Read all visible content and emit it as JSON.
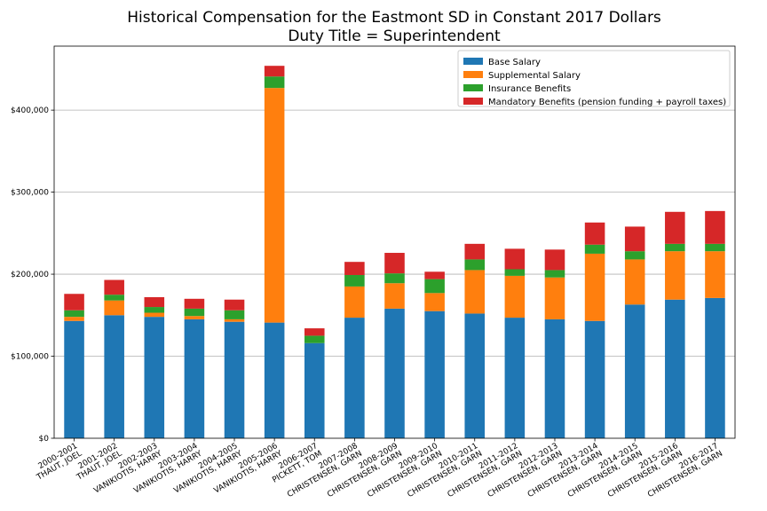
{
  "chart_data": {
    "type": "bar",
    "stacked": true,
    "title": "Historical Compensation for the Eastmont SD in Constant 2017 Dollars",
    "subtitle": "Duty Title = Superintendent",
    "xlabel": "",
    "ylabel": "",
    "ylim": [
      0,
      478000
    ],
    "yticks": [
      0,
      100000,
      200000,
      300000,
      400000
    ],
    "ytick_labels": [
      "$0",
      "$100,000",
      "$200,000",
      "$300,000",
      "$400,000"
    ],
    "grid": "horizontal",
    "legend_position": "top-right",
    "categories": [
      [
        "2000-2001",
        "THAUT, JOEL"
      ],
      [
        "2001-2002",
        "THAUT, JOEL"
      ],
      [
        "2002-2003",
        "VANIKIOTIS, HARRY"
      ],
      [
        "2003-2004",
        "VANIKIOTIS, HARRY"
      ],
      [
        "2004-2005",
        "VANIKIOTIS, HARRY"
      ],
      [
        "2005-2006",
        "VANIKIOTIS, HARRY"
      ],
      [
        "2006-2007",
        "PICKETT, TOM"
      ],
      [
        "2007-2008",
        "CHRISTENSEN, GARN"
      ],
      [
        "2008-2009",
        "CHRISTENSEN, GARN"
      ],
      [
        "2009-2010",
        "CHRISTENSEN, GARN"
      ],
      [
        "2010-2011",
        "CHRISTENSEN, GARN"
      ],
      [
        "2011-2012",
        "CHRISTENSEN, GARN"
      ],
      [
        "2012-2013",
        "CHRISTENSEN, GARN"
      ],
      [
        "2013-2014",
        "CHRISTENSEN, GARN"
      ],
      [
        "2014-2015",
        "CHRISTENSEN, GARN"
      ],
      [
        "2015-2016",
        "CHRISTENSEN, GARN"
      ],
      [
        "2016-2017",
        "CHRISTENSEN, GARN"
      ]
    ],
    "series": [
      {
        "name": "Base Salary",
        "color": "#1f77b4",
        "values": [
          143000,
          150000,
          148000,
          145000,
          142000,
          141000,
          116000,
          147000,
          158000,
          155000,
          152000,
          147000,
          145000,
          143000,
          163000,
          169000,
          171000
        ]
      },
      {
        "name": "Supplemental Salary",
        "color": "#ff7f0e",
        "values": [
          5000,
          18000,
          5000,
          4000,
          3000,
          286000,
          0,
          38000,
          31000,
          22000,
          53000,
          51000,
          51000,
          82000,
          55000,
          59000,
          57000
        ]
      },
      {
        "name": "Insurance Benefits",
        "color": "#2ca02c",
        "values": [
          8000,
          7000,
          7000,
          9000,
          11000,
          14000,
          9000,
          14000,
          12000,
          17000,
          13000,
          8000,
          9000,
          11000,
          10000,
          9000,
          9000
        ]
      },
      {
        "name": "Mandatory Benefits (pension funding + payroll taxes)",
        "color": "#d62728",
        "values": [
          20000,
          18000,
          12000,
          12000,
          13000,
          13000,
          9000,
          16000,
          25000,
          9000,
          19000,
          25000,
          25000,
          27000,
          30000,
          39000,
          40000
        ]
      }
    ]
  }
}
